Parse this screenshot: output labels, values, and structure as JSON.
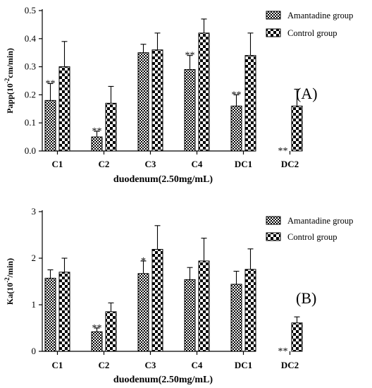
{
  "chart_data": [
    {
      "type": "bar",
      "panel_label": "(A)",
      "categories": [
        "C1",
        "C2",
        "C3",
        "C4",
        "DC1",
        "DC2"
      ],
      "xlabel": "duodenum(2.50mg/mL)",
      "ylabel": {
        "prefix": "Papp(10",
        "sup": "-2",
        "suffix": "cm/min)"
      },
      "ylim": [
        0,
        0.5
      ],
      "yticks": [
        "0.0",
        "0.1",
        "0.2",
        "0.3",
        "0.4",
        "0.5"
      ],
      "ytick_values": [
        0,
        0.1,
        0.2,
        0.3,
        0.4,
        0.5
      ],
      "legend_position": "top-right",
      "series": [
        {
          "name": "Amantadine group",
          "pattern": "dense-checker",
          "values": [
            0.18,
            0.05,
            0.35,
            0.29,
            0.16,
            0
          ],
          "errors": [
            0.06,
            0.02,
            0.03,
            0.05,
            0.04,
            0
          ],
          "significance": [
            "**",
            "**",
            "",
            "**",
            "**",
            "**"
          ]
        },
        {
          "name": "Control group",
          "pattern": "large-checker",
          "values": [
            0.3,
            0.17,
            0.36,
            0.42,
            0.34,
            0.16
          ],
          "errors": [
            0.09,
            0.06,
            0.06,
            0.05,
            0.08,
            0.06
          ],
          "significance": [
            "",
            "",
            "",
            "",
            "",
            ""
          ]
        }
      ]
    },
    {
      "type": "bar",
      "panel_label": "(B)",
      "categories": [
        "C1",
        "C2",
        "C3",
        "C4",
        "DC1",
        "DC2"
      ],
      "xlabel": "duodenum(2.50mg/mL)",
      "ylabel": {
        "prefix": "Ka(10",
        "sup": "-2",
        "suffix": "/min)"
      },
      "ylim": [
        0,
        3
      ],
      "yticks": [
        "0",
        "1",
        "2",
        "3"
      ],
      "ytick_values": [
        0,
        1,
        2,
        3
      ],
      "legend_position": "top-right",
      "series": [
        {
          "name": "Amantadine group",
          "pattern": "dense-checker",
          "values": [
            1.57,
            0.42,
            1.67,
            1.54,
            1.44,
            0
          ],
          "errors": [
            0.18,
            0.08,
            0.27,
            0.26,
            0.28,
            0
          ],
          "significance": [
            "",
            "**",
            "*",
            "",
            "",
            "**"
          ]
        },
        {
          "name": "Control group",
          "pattern": "large-checker",
          "values": [
            1.7,
            0.85,
            2.19,
            1.94,
            1.76,
            0.61
          ],
          "errors": [
            0.3,
            0.19,
            0.51,
            0.49,
            0.44,
            0.13
          ],
          "significance": [
            "",
            "",
            "",
            "",
            "",
            ""
          ]
        }
      ]
    }
  ]
}
